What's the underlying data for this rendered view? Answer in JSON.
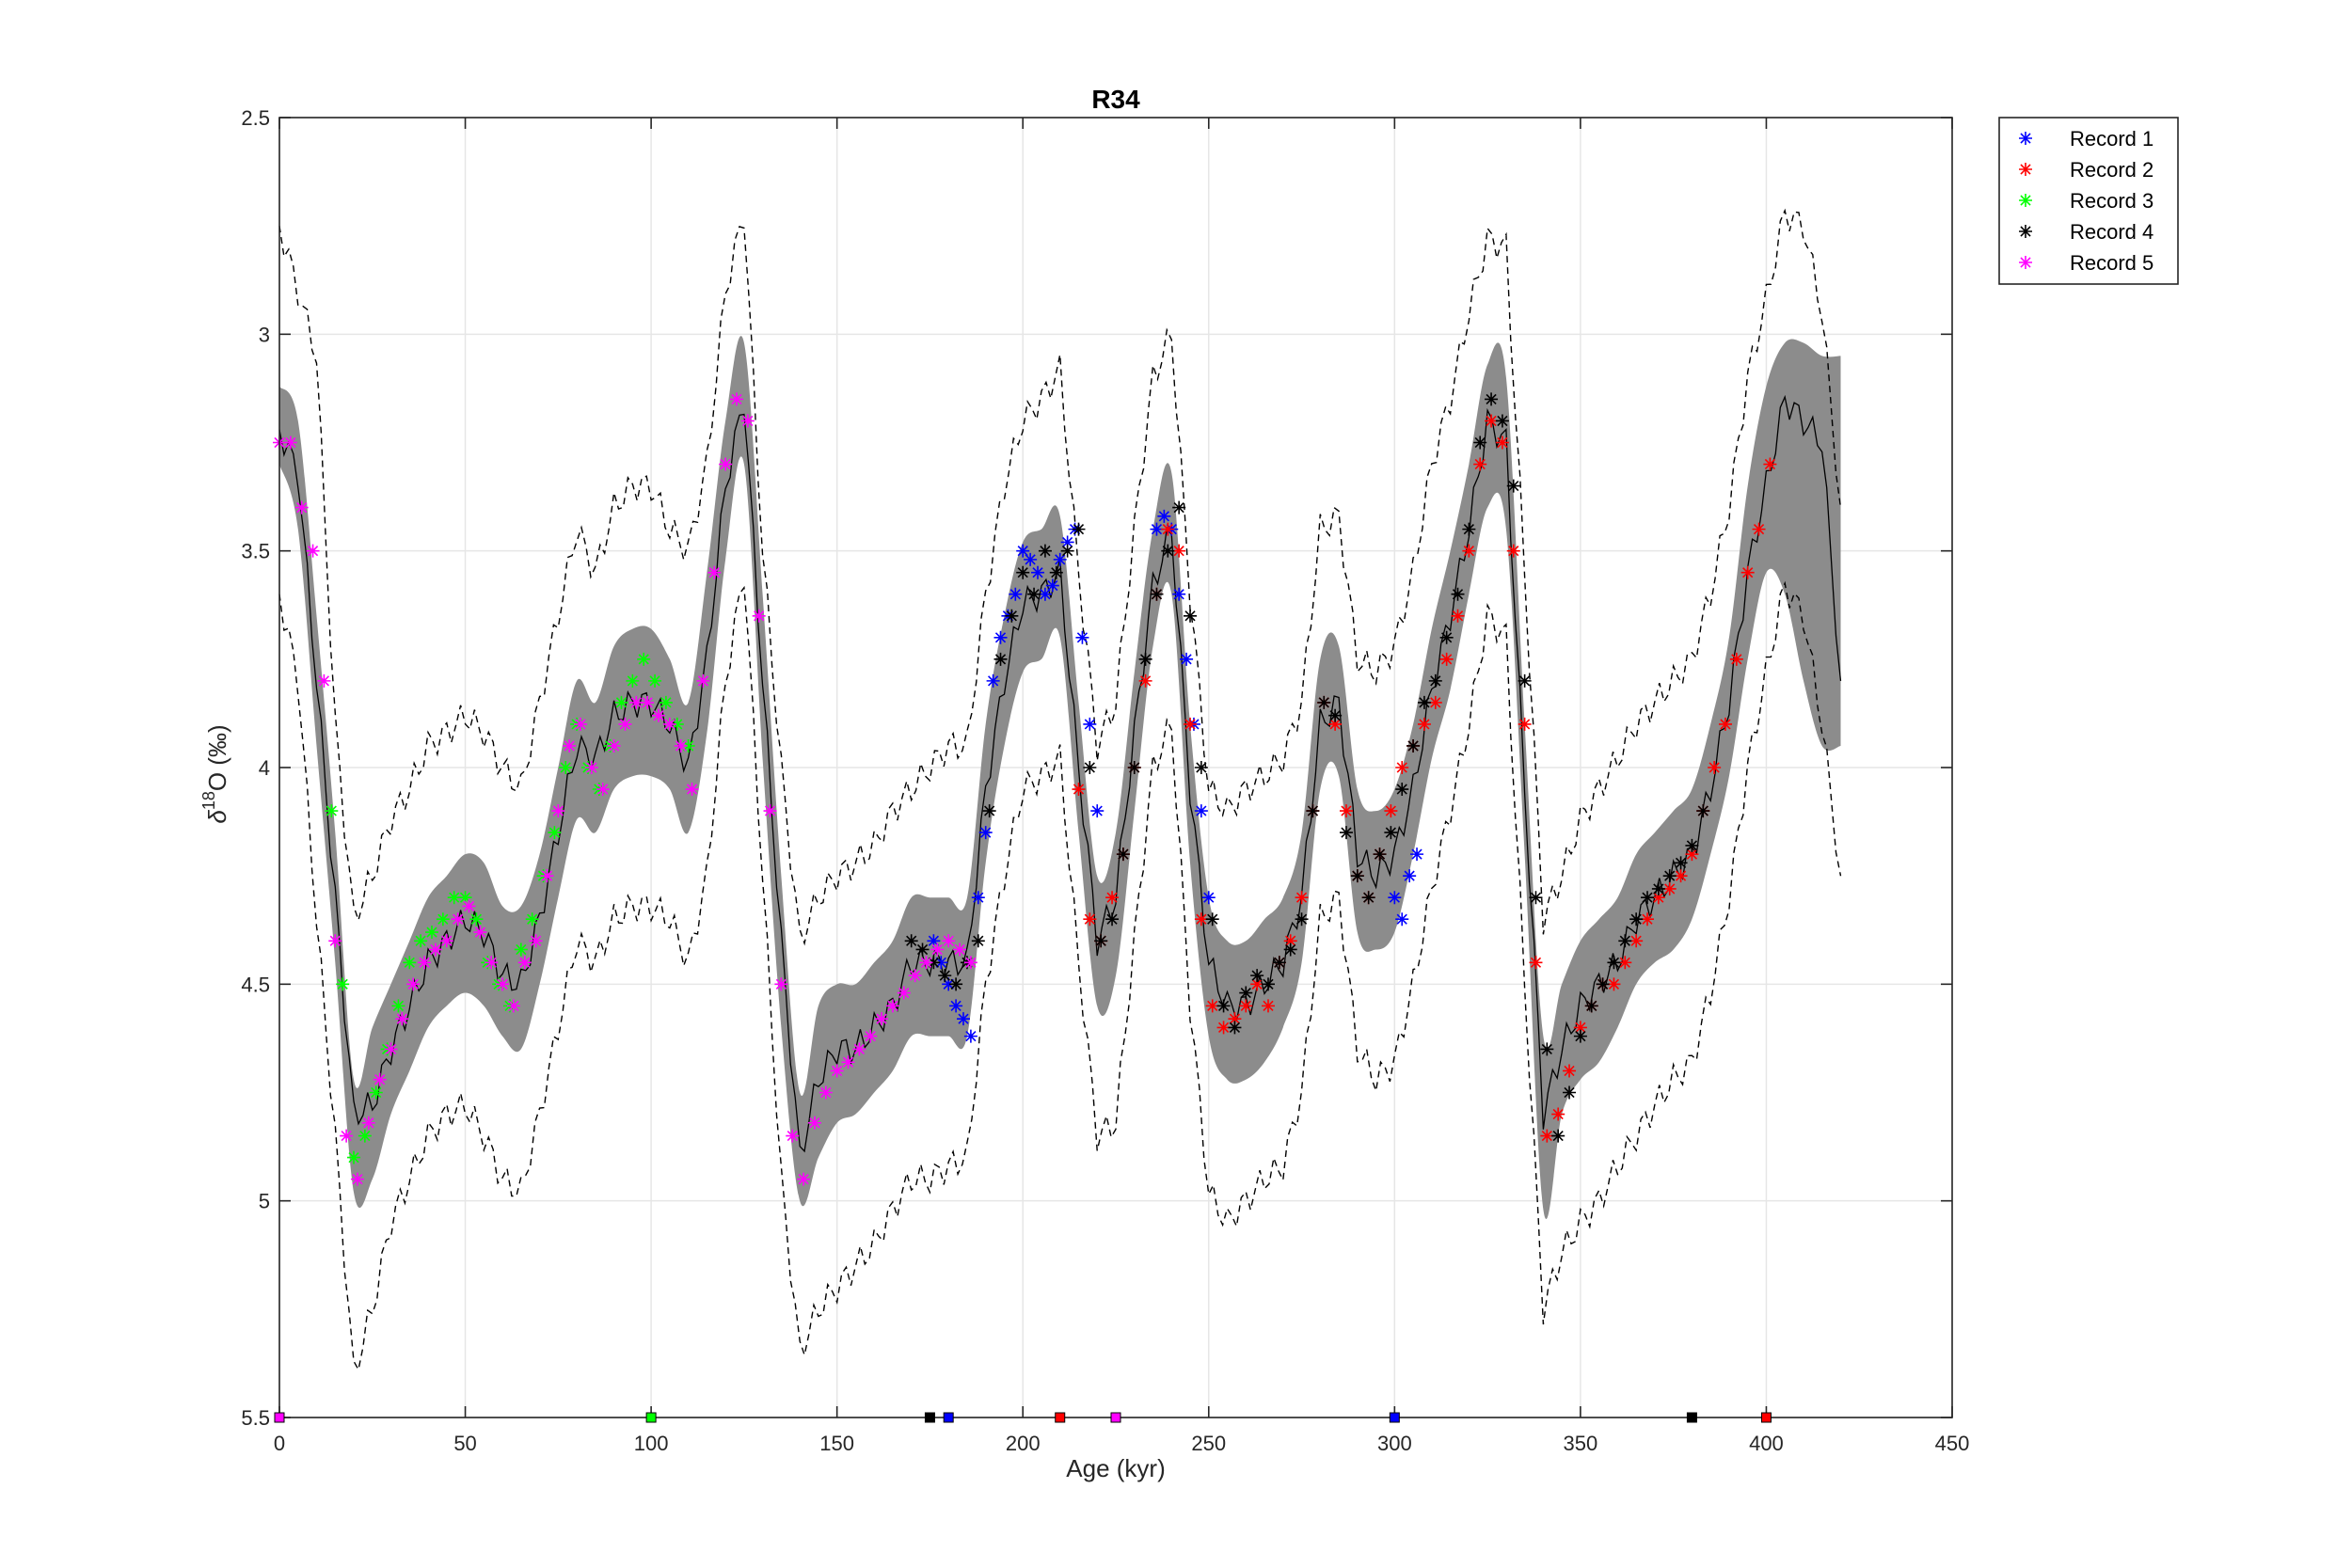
{
  "chart_data": {
    "type": "line",
    "title": "R34",
    "xlabel": "Age (kyr)",
    "ylabel": "δ18O (‰)",
    "ylabel_base": "δ",
    "ylabel_sup": "18",
    "ylabel_rest": "O (‰)",
    "xlim": [
      0,
      450
    ],
    "ylim": [
      2.5,
      5.5
    ],
    "y_reversed": true,
    "grid": true,
    "legend_position": "outside-top-right",
    "xticks": [
      "0",
      "50",
      "100",
      "150",
      "200",
      "250",
      "300",
      "350",
      "400",
      "450"
    ],
    "yticks": [
      "2.5",
      "3",
      "3.5",
      "4",
      "4.5",
      "5",
      "5.5"
    ],
    "stack_mean": {
      "x": [
        0,
        5,
        10,
        15,
        20,
        25,
        30,
        35,
        40,
        45,
        50,
        55,
        60,
        65,
        70,
        75,
        80,
        85,
        90,
        95,
        100,
        105,
        110,
        115,
        120,
        125,
        130,
        135,
        140,
        145,
        150,
        155,
        160,
        165,
        170,
        175,
        180,
        185,
        190,
        195,
        200,
        205,
        210,
        215,
        220,
        225,
        230,
        235,
        240,
        245,
        250,
        255,
        260,
        265,
        270,
        275,
        280,
        285,
        290,
        295,
        300,
        305,
        310,
        315,
        320,
        325,
        330,
        335,
        340,
        345,
        350,
        355,
        360,
        365,
        370,
        375,
        380,
        385,
        390,
        395,
        400,
        405,
        410,
        415,
        420
      ],
      "y": [
        3.22,
        3.32,
        3.8,
        4.3,
        4.8,
        4.78,
        4.65,
        4.55,
        4.45,
        4.4,
        4.35,
        4.38,
        4.48,
        4.5,
        4.35,
        4.15,
        3.95,
        3.98,
        3.88,
        3.85,
        3.85,
        3.9,
        4.0,
        3.75,
        3.35,
        3.15,
        3.8,
        4.4,
        4.9,
        4.72,
        4.65,
        4.65,
        4.6,
        4.55,
        4.45,
        4.45,
        4.45,
        4.45,
        4.05,
        3.8,
        3.62,
        3.6,
        3.55,
        4.0,
        4.4,
        4.3,
        3.92,
        3.58,
        3.45,
        4.05,
        4.45,
        4.55,
        4.55,
        4.5,
        4.45,
        4.3,
        3.9,
        3.85,
        4.2,
        4.25,
        4.2,
        4.05,
        3.82,
        3.65,
        3.45,
        3.2,
        3.25,
        4.05,
        4.8,
        4.65,
        4.55,
        4.5,
        4.45,
        4.35,
        4.3,
        4.25,
        4.2,
        4.05,
        3.85,
        3.55,
        3.35,
        3.15,
        3.2,
        3.25,
        3.8
      ]
    },
    "band": {
      "name": "95% interval",
      "color": "#8c8c8c",
      "lower": [
        3.12,
        3.2,
        3.65,
        4.15,
        4.72,
        4.6,
        4.5,
        4.4,
        4.3,
        4.25,
        4.2,
        4.22,
        4.32,
        4.32,
        4.2,
        4.0,
        3.8,
        3.85,
        3.72,
        3.68,
        3.68,
        3.75,
        3.85,
        3.55,
        3.2,
        3.02,
        3.6,
        4.25,
        4.75,
        4.55,
        4.5,
        4.5,
        4.45,
        4.4,
        4.3,
        4.3,
        4.3,
        4.3,
        3.9,
        3.65,
        3.48,
        3.45,
        3.42,
        3.85,
        4.25,
        4.15,
        3.78,
        3.45,
        3.32,
        3.9,
        4.3,
        4.4,
        4.4,
        4.35,
        4.3,
        4.15,
        3.75,
        3.72,
        4.05,
        4.1,
        4.05,
        3.9,
        3.68,
        3.5,
        3.3,
        3.07,
        3.1,
        3.9,
        4.62,
        4.5,
        4.4,
        4.35,
        4.3,
        4.2,
        4.15,
        4.1,
        4.05,
        3.9,
        3.7,
        3.35,
        3.12,
        3.02,
        3.02,
        3.05,
        3.05
      ],
      "upper": [
        3.3,
        3.45,
        3.95,
        4.45,
        4.98,
        4.95,
        4.8,
        4.7,
        4.6,
        4.55,
        4.52,
        4.55,
        4.62,
        4.65,
        4.5,
        4.3,
        4.12,
        4.15,
        4.05,
        4.02,
        4.02,
        4.05,
        4.15,
        3.92,
        3.52,
        3.3,
        3.98,
        4.6,
        5.0,
        4.9,
        4.82,
        4.8,
        4.75,
        4.7,
        4.62,
        4.62,
        4.62,
        4.62,
        4.22,
        3.95,
        3.78,
        3.75,
        3.7,
        4.15,
        4.55,
        4.48,
        4.1,
        3.72,
        3.6,
        4.22,
        4.62,
        4.72,
        4.72,
        4.68,
        4.6,
        4.45,
        4.05,
        4.02,
        4.38,
        4.42,
        4.38,
        4.2,
        3.98,
        3.82,
        3.6,
        3.4,
        3.45,
        4.2,
        5.02,
        4.8,
        4.72,
        4.68,
        4.6,
        4.5,
        4.45,
        4.42,
        4.35,
        4.2,
        4.02,
        3.75,
        3.55,
        3.6,
        3.8,
        3.95,
        3.95
      ]
    },
    "dashed_upper": {
      "x": [
        0,
        5,
        10,
        15,
        20,
        25,
        30,
        35,
        40,
        45,
        50,
        55,
        60,
        65,
        70,
        75,
        80,
        85,
        90,
        95,
        100,
        105,
        110,
        115,
        120,
        125,
        130,
        135,
        140,
        145,
        150,
        155,
        160,
        165,
        170,
        175,
        180,
        185,
        190,
        195,
        200,
        205,
        210,
        215,
        220,
        225,
        230,
        235,
        240,
        245,
        250,
        255,
        260,
        265,
        270,
        275,
        280,
        285,
        290,
        295,
        300,
        305,
        310,
        315,
        320,
        325,
        330,
        335,
        340,
        345,
        350,
        355,
        360,
        365,
        370,
        375,
        380,
        385,
        390,
        395,
        400,
        405,
        410,
        415,
        420
      ],
      "y": [
        2.75,
        2.9,
        3.05,
        3.9,
        4.35,
        4.25,
        4.12,
        4.05,
        3.95,
        3.92,
        3.88,
        3.92,
        4.0,
        4.05,
        3.85,
        3.65,
        3.45,
        3.55,
        3.4,
        3.35,
        3.35,
        3.45,
        3.5,
        3.3,
        2.9,
        2.72,
        3.5,
        4.0,
        4.4,
        4.3,
        4.25,
        4.22,
        4.18,
        4.1,
        4.05,
        4.0,
        3.95,
        3.95,
        3.6,
        3.35,
        3.2,
        3.15,
        3.08,
        3.55,
        3.95,
        3.85,
        3.45,
        3.1,
        3.0,
        3.6,
        4.05,
        4.1,
        4.05,
        4.02,
        3.98,
        3.85,
        3.45,
        3.42,
        3.75,
        3.78,
        3.72,
        3.55,
        3.3,
        3.15,
        2.95,
        2.78,
        2.8,
        3.55,
        4.35,
        4.25,
        4.12,
        4.05,
        3.98,
        3.9,
        3.85,
        3.8,
        3.75,
        3.6,
        3.4,
        3.1,
        2.92,
        2.72,
        2.75,
        2.95,
        3.4
      ]
    },
    "dashed_lower": {
      "x": [
        0,
        5,
        10,
        15,
        20,
        25,
        30,
        35,
        40,
        45,
        50,
        55,
        60,
        65,
        70,
        75,
        80,
        85,
        90,
        95,
        100,
        105,
        110,
        115,
        120,
        125,
        130,
        135,
        140,
        145,
        150,
        155,
        160,
        165,
        170,
        175,
        180,
        185,
        190,
        195,
        200,
        205,
        210,
        215,
        220,
        225,
        230,
        235,
        240,
        245,
        250,
        255,
        260,
        265,
        270,
        275,
        280,
        285,
        290,
        295,
        300,
        305,
        310,
        315,
        320,
        325,
        330,
        335,
        340,
        345,
        350,
        355,
        360,
        365,
        370,
        375,
        380,
        385,
        390,
        395,
        400,
        405,
        410,
        415,
        420
      ],
      "y": [
        3.6,
        3.8,
        4.35,
        4.85,
        5.4,
        5.25,
        5.05,
        4.95,
        4.85,
        4.8,
        4.78,
        4.85,
        4.95,
        4.98,
        4.8,
        4.6,
        4.4,
        4.45,
        4.35,
        4.32,
        4.32,
        4.35,
        4.45,
        4.25,
        3.8,
        3.55,
        4.25,
        4.95,
        5.35,
        5.25,
        5.2,
        5.15,
        5.1,
        5.02,
        4.95,
        4.95,
        4.92,
        4.9,
        4.5,
        4.25,
        4.05,
        4.02,
        3.98,
        4.45,
        4.85,
        4.82,
        4.4,
        4.0,
        3.9,
        4.55,
        4.98,
        5.05,
        5.0,
        4.95,
        4.92,
        4.75,
        4.35,
        4.3,
        4.65,
        4.72,
        4.68,
        4.5,
        4.28,
        4.1,
        3.9,
        3.65,
        3.7,
        4.5,
        5.25,
        5.12,
        5.05,
        5.0,
        4.92,
        4.85,
        4.78,
        4.72,
        4.68,
        4.52,
        4.3,
        4.0,
        3.78,
        3.58,
        3.65,
        3.9,
        4.25
      ]
    },
    "series": [
      {
        "name": "Record 1",
        "color": "#0000ff",
        "x": [
          176,
          178,
          180,
          182,
          184,
          186,
          188,
          190,
          192,
          194,
          196,
          198,
          200,
          202,
          204,
          206,
          208,
          210,
          212,
          214,
          216,
          218,
          220,
          236,
          238,
          240,
          242,
          244,
          246,
          248,
          250,
          300,
          302,
          304,
          306
        ],
        "y": [
          4.4,
          4.45,
          4.5,
          4.55,
          4.58,
          4.62,
          4.3,
          4.15,
          3.8,
          3.7,
          3.65,
          3.6,
          3.5,
          3.52,
          3.55,
          3.6,
          3.58,
          3.52,
          3.48,
          3.45,
          3.7,
          3.9,
          4.1,
          3.45,
          3.42,
          3.45,
          3.6,
          3.75,
          3.9,
          4.1,
          4.3,
          4.3,
          4.35,
          4.25,
          4.2
        ]
      },
      {
        "name": "Record 2",
        "color": "#ff0000",
        "x": [
          215,
          218,
          221,
          224,
          227,
          230,
          233,
          236,
          239,
          242,
          245,
          248,
          251,
          254,
          257,
          260,
          263,
          266,
          269,
          272,
          275,
          278,
          281,
          284,
          287,
          290,
          293,
          296,
          299,
          302,
          305,
          308,
          311,
          314,
          317,
          320,
          323,
          326,
          329,
          332,
          335,
          338,
          341,
          344,
          347,
          350,
          353,
          356,
          359,
          362,
          365,
          368,
          371,
          374,
          377,
          380,
          383,
          386,
          389,
          392,
          395,
          398,
          401
        ],
        "y": [
          4.05,
          4.35,
          4.4,
          4.3,
          4.2,
          4.0,
          3.8,
          3.6,
          3.45,
          3.5,
          3.9,
          4.35,
          4.55,
          4.6,
          4.58,
          4.55,
          4.5,
          4.55,
          4.45,
          4.4,
          4.3,
          4.1,
          3.85,
          3.9,
          4.1,
          4.25,
          4.3,
          4.2,
          4.1,
          4.0,
          3.95,
          3.9,
          3.85,
          3.75,
          3.65,
          3.5,
          3.3,
          3.2,
          3.25,
          3.5,
          3.9,
          4.45,
          4.85,
          4.8,
          4.7,
          4.6,
          4.55,
          4.5,
          4.5,
          4.45,
          4.4,
          4.35,
          4.3,
          4.28,
          4.25,
          4.2,
          4.1,
          4.0,
          3.9,
          3.75,
          3.55,
          3.45,
          3.3
        ]
      },
      {
        "name": "Record 3",
        "color": "#00ff00",
        "x": [
          14,
          17,
          20,
          23,
          26,
          29,
          32,
          35,
          38,
          41,
          44,
          47,
          50,
          53,
          56,
          59,
          62,
          65,
          68,
          71,
          74,
          77,
          80,
          83,
          86,
          89,
          92,
          95,
          98,
          101,
          104,
          107,
          110
        ],
        "y": [
          4.1,
          4.5,
          4.9,
          4.85,
          4.75,
          4.65,
          4.55,
          4.45,
          4.4,
          4.38,
          4.35,
          4.3,
          4.3,
          4.35,
          4.45,
          4.5,
          4.55,
          4.42,
          4.35,
          4.25,
          4.15,
          4.0,
          3.9,
          4.0,
          4.05,
          3.95,
          3.85,
          3.8,
          3.75,
          3.8,
          3.85,
          3.9,
          3.95
        ]
      },
      {
        "name": "Record 4",
        "color": "#000000",
        "x": [
          170,
          173,
          176,
          179,
          182,
          185,
          188,
          191,
          194,
          197,
          200,
          203,
          206,
          209,
          212,
          215,
          218,
          221,
          224,
          227,
          230,
          233,
          236,
          239,
          242,
          245,
          248,
          251,
          254,
          257,
          260,
          263,
          266,
          269,
          272,
          275,
          278,
          281,
          284,
          287,
          290,
          293,
          296,
          299,
          302,
          305,
          308,
          311,
          314,
          317,
          320,
          323,
          326,
          329,
          332,
          335,
          338,
          341,
          344,
          347,
          350,
          353,
          356,
          359,
          362,
          365,
          368,
          371,
          374,
          377,
          380,
          383
        ],
        "y": [
          4.4,
          4.42,
          4.45,
          4.48,
          4.5,
          4.45,
          4.4,
          4.1,
          3.75,
          3.65,
          3.55,
          3.6,
          3.5,
          3.55,
          3.5,
          3.45,
          4.0,
          4.4,
          4.35,
          4.2,
          4.0,
          3.75,
          3.6,
          3.5,
          3.4,
          3.65,
          4.0,
          4.35,
          4.55,
          4.6,
          4.52,
          4.48,
          4.5,
          4.45,
          4.42,
          4.35,
          4.1,
          3.85,
          3.88,
          4.15,
          4.25,
          4.3,
          4.2,
          4.15,
          4.05,
          3.95,
          3.85,
          3.8,
          3.7,
          3.6,
          3.45,
          3.25,
          3.15,
          3.2,
          3.35,
          3.8,
          4.3,
          4.65,
          4.85,
          4.75,
          4.62,
          4.55,
          4.5,
          4.45,
          4.4,
          4.35,
          4.3,
          4.28,
          4.25,
          4.22,
          4.18,
          4.1
        ]
      },
      {
        "name": "Record 5",
        "color": "#ff00ff",
        "x": [
          0,
          3,
          6,
          9,
          12,
          15,
          18,
          21,
          24,
          27,
          30,
          33,
          36,
          39,
          42,
          45,
          48,
          51,
          54,
          57,
          60,
          63,
          66,
          69,
          72,
          75,
          78,
          81,
          84,
          87,
          90,
          93,
          96,
          99,
          102,
          105,
          108,
          111,
          114,
          117,
          120,
          123,
          126,
          129,
          132,
          135,
          138,
          141,
          144,
          147,
          150,
          153,
          156,
          159,
          162,
          165,
          168,
          171,
          174,
          177,
          180,
          183,
          186
        ],
        "y": [
          3.25,
          3.25,
          3.4,
          3.5,
          3.8,
          4.4,
          4.85,
          4.95,
          4.82,
          4.72,
          4.65,
          4.58,
          4.5,
          4.45,
          4.42,
          4.4,
          4.35,
          4.32,
          4.38,
          4.45,
          4.5,
          4.55,
          4.45,
          4.4,
          4.25,
          4.1,
          3.95,
          3.9,
          4.0,
          4.05,
          3.95,
          3.9,
          3.85,
          3.85,
          3.88,
          3.9,
          3.95,
          4.05,
          3.8,
          3.55,
          3.3,
          3.15,
          3.2,
          3.65,
          4.1,
          4.5,
          4.85,
          4.95,
          4.82,
          4.75,
          4.7,
          4.68,
          4.65,
          4.62,
          4.58,
          4.55,
          4.52,
          4.48,
          4.45,
          4.42,
          4.4,
          4.42,
          4.45
        ]
      }
    ],
    "age_tiepoints": [
      {
        "x": 0,
        "color": "#ff00ff"
      },
      {
        "x": 100,
        "color": "#00ff00"
      },
      {
        "x": 175,
        "color": "#000000"
      },
      {
        "x": 180,
        "color": "#0000ff"
      },
      {
        "x": 210,
        "color": "#ff0000"
      },
      {
        "x": 225,
        "color": "#ff00ff"
      },
      {
        "x": 300,
        "color": "#0000ff"
      },
      {
        "x": 380,
        "color": "#000000"
      },
      {
        "x": 400,
        "color": "#ff0000"
      }
    ]
  }
}
